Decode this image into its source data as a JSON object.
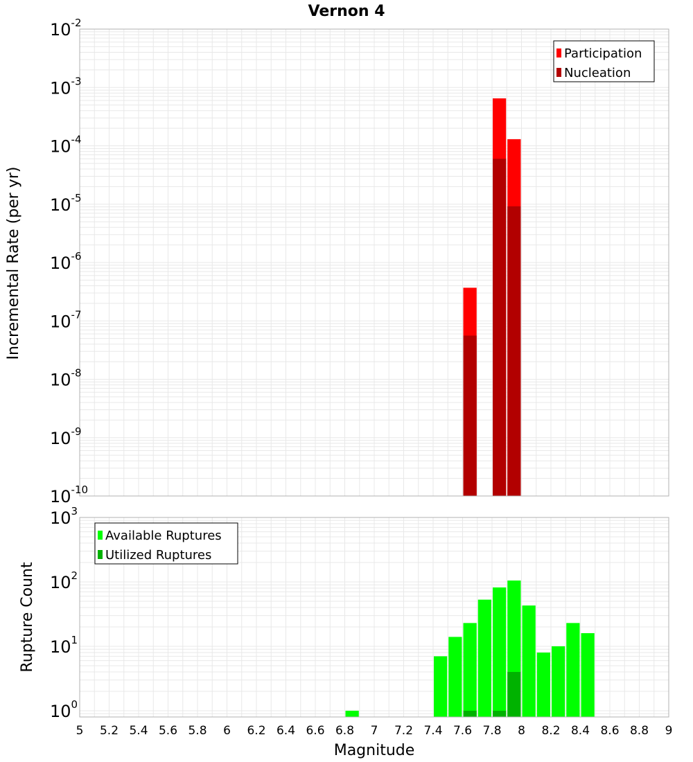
{
  "chart_data": [
    {
      "type": "bar",
      "title": "Vernon 4",
      "xlabel": "Magnitude",
      "ylabel": "Incremental Rate (per yr)",
      "yscale": "log",
      "xlim": [
        5,
        9
      ],
      "ylim": [
        1e-10,
        0.01
      ],
      "grid": true,
      "legend_position": "top-right",
      "x_ticks": [
        "5",
        "5.2",
        "5.4",
        "5.6",
        "5.8",
        "6",
        "6.2",
        "6.4",
        "6.6",
        "6.8",
        "7",
        "7.2",
        "7.4",
        "7.6",
        "7.8",
        "8",
        "8.2",
        "8.4",
        "8.6",
        "8.8",
        "9"
      ],
      "y_ticks": [
        {
          "base": "10",
          "exp": "-10"
        },
        {
          "base": "10",
          "exp": "-9"
        },
        {
          "base": "10",
          "exp": "-8"
        },
        {
          "base": "10",
          "exp": "-7"
        },
        {
          "base": "10",
          "exp": "-6"
        },
        {
          "base": "10",
          "exp": "-5"
        },
        {
          "base": "10",
          "exp": "-4"
        },
        {
          "base": "10",
          "exp": "-3"
        },
        {
          "base": "10",
          "exp": "-2"
        }
      ],
      "series": [
        {
          "name": "Participation",
          "color": "#ff0000",
          "x": [
            7.65,
            7.85,
            7.95
          ],
          "values": [
            3.7e-07,
            0.00065,
            0.00013
          ]
        },
        {
          "name": "Nucleation",
          "color": "#b20000",
          "x": [
            7.65,
            7.85,
            7.95
          ],
          "values": [
            5.6e-08,
            6e-05,
            9.2e-06
          ]
        }
      ]
    },
    {
      "type": "bar",
      "xlabel": "Magnitude",
      "ylabel": "Rupture Count",
      "yscale": "log",
      "xlim": [
        5,
        9
      ],
      "ylim": [
        0.8,
        1000
      ],
      "grid": true,
      "legend_position": "top-left",
      "y_ticks": [
        {
          "base": "10",
          "exp": "0",
          "value": 1
        },
        {
          "base": "10",
          "exp": "1",
          "value": 10
        },
        {
          "base": "10",
          "exp": "2",
          "value": 100
        },
        {
          "base": "10",
          "exp": "3",
          "value": 1000
        }
      ],
      "series": [
        {
          "name": "Available Ruptures",
          "color": "#00ff00",
          "x": [
            6.85,
            7.45,
            7.55,
            7.65,
            7.75,
            7.85,
            7.95,
            8.05,
            8.15,
            8.25,
            8.35,
            8.45
          ],
          "values": [
            1,
            7,
            14,
            23,
            53,
            82,
            105,
            43,
            8,
            10,
            23,
            16
          ]
        },
        {
          "name": "Utilized Ruptures",
          "color": "#00b200",
          "x": [
            7.65,
            7.85,
            7.95
          ],
          "values": [
            1,
            1,
            4
          ]
        }
      ]
    }
  ]
}
